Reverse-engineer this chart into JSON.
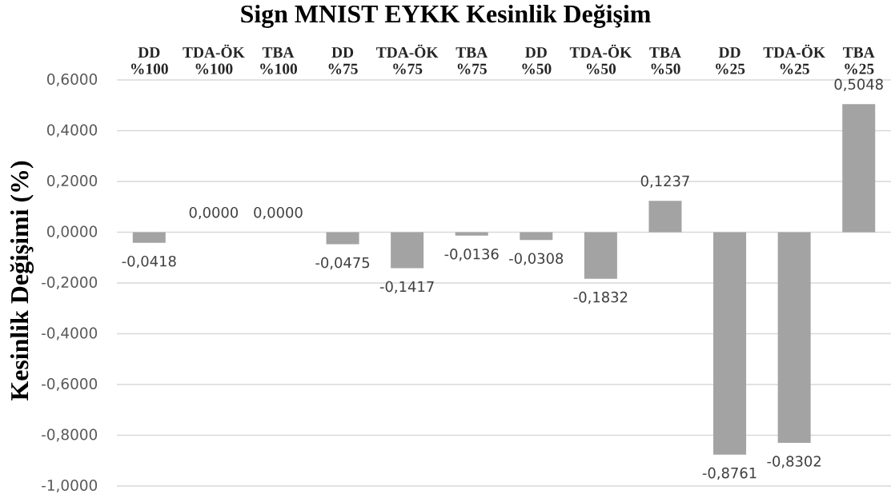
{
  "chart_data": {
    "type": "bar",
    "title": "Sign MNIST EYKK Kesinlik Değişim",
    "ylabel": "Kesinlik Değişimi (%)",
    "categories": [
      "DD %100",
      "TDA-ÖK %100",
      "TBA %100",
      "DD %75",
      "TDA-ÖK %75",
      "TBA %75",
      "DD %50",
      "TDA-ÖK %50",
      "TBA %50",
      "DD %25",
      "TDA-ÖK %25",
      "TBA %25"
    ],
    "values": [
      -0.0418,
      0,
      0,
      -0.0475,
      -0.1417,
      -0.0136,
      -0.0308,
      -0.1832,
      0.1237,
      -0.8761,
      -0.8302,
      0.5048
    ],
    "value_labels": [
      "-0,0418",
      "0,0000",
      "0,0000",
      "-0,0475",
      "-0,1417",
      "-0,0136",
      "-0,0308",
      "-0,1832",
      "0,1237",
      "-0,8761",
      "-0,8302",
      "0,5048"
    ],
    "color": "#a3a3a3",
    "ylim": [
      -1,
      0.6
    ],
    "yticks": [
      {
        "value": -1,
        "label": "-1,0000"
      },
      {
        "value": -0.8,
        "label": "-0,8000"
      },
      {
        "value": -0.6,
        "label": "-0,6000"
      },
      {
        "value": -0.4,
        "label": "-0,4000"
      },
      {
        "value": -0.2,
        "label": "-0,2000"
      },
      {
        "value": 0,
        "label": "0,0000"
      },
      {
        "value": 0.2,
        "label": "0,2000"
      },
      {
        "value": 0.4,
        "label": "0,4000"
      },
      {
        "value": 0.6,
        "label": "0,6000"
      }
    ],
    "grid": "y"
  }
}
